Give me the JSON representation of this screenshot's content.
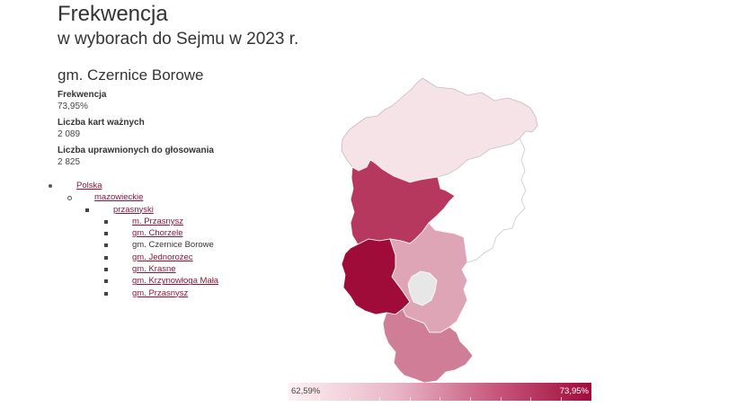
{
  "header": {
    "title": "Frekwencja",
    "subtitle": "w wyborach do Sejmu w 2023 r."
  },
  "area": {
    "name": "gm. Czernice Borowe"
  },
  "stats": [
    {
      "label": "Frekwencja",
      "value": "73,95%"
    },
    {
      "label": "Liczba kart ważnych",
      "value": "2 089"
    },
    {
      "label": "Liczba uprawnionych do głosowania",
      "value": "2 825"
    }
  ],
  "breadcrumb": {
    "country": "Polska",
    "voivodeship": "mazowieckie",
    "county": "przasnyski",
    "gminas": [
      {
        "label": "m. Przasnysz",
        "link": true
      },
      {
        "label": "gm. Chorzele",
        "link": true
      },
      {
        "label": "gm. Czernice Borowe",
        "link": false
      },
      {
        "label": "gm. Jednorożec",
        "link": true
      },
      {
        "label": "gm. Krasne",
        "link": true
      },
      {
        "label": "gm. Krzynowłoga Mała",
        "link": true
      },
      {
        "label": "gm. Przasnysz",
        "link": true
      }
    ]
  },
  "map_regions": [
    {
      "name": "Chorzele",
      "fill": "#f5e3e8"
    },
    {
      "name": "Jednorożec",
      "fill": "#ffffff"
    },
    {
      "name": "Krzynowłoga Mała",
      "fill": "#b7385f"
    },
    {
      "name": "Czernice Borowe",
      "fill": "#9f0c3a"
    },
    {
      "name": "gm. Przasnysz",
      "fill": "#dea5b6"
    },
    {
      "name": "m. Przasnysz",
      "fill": "#e7e7e7"
    },
    {
      "name": "Krasne",
      "fill": "#d07e98"
    }
  ],
  "legend": {
    "min": "62,59%",
    "max": "73,95%",
    "color_low": "#fdf1f4",
    "color_high": "#9f0c3a"
  },
  "colors": {
    "link": "#8a1538",
    "accent": "#9f0c3a"
  }
}
